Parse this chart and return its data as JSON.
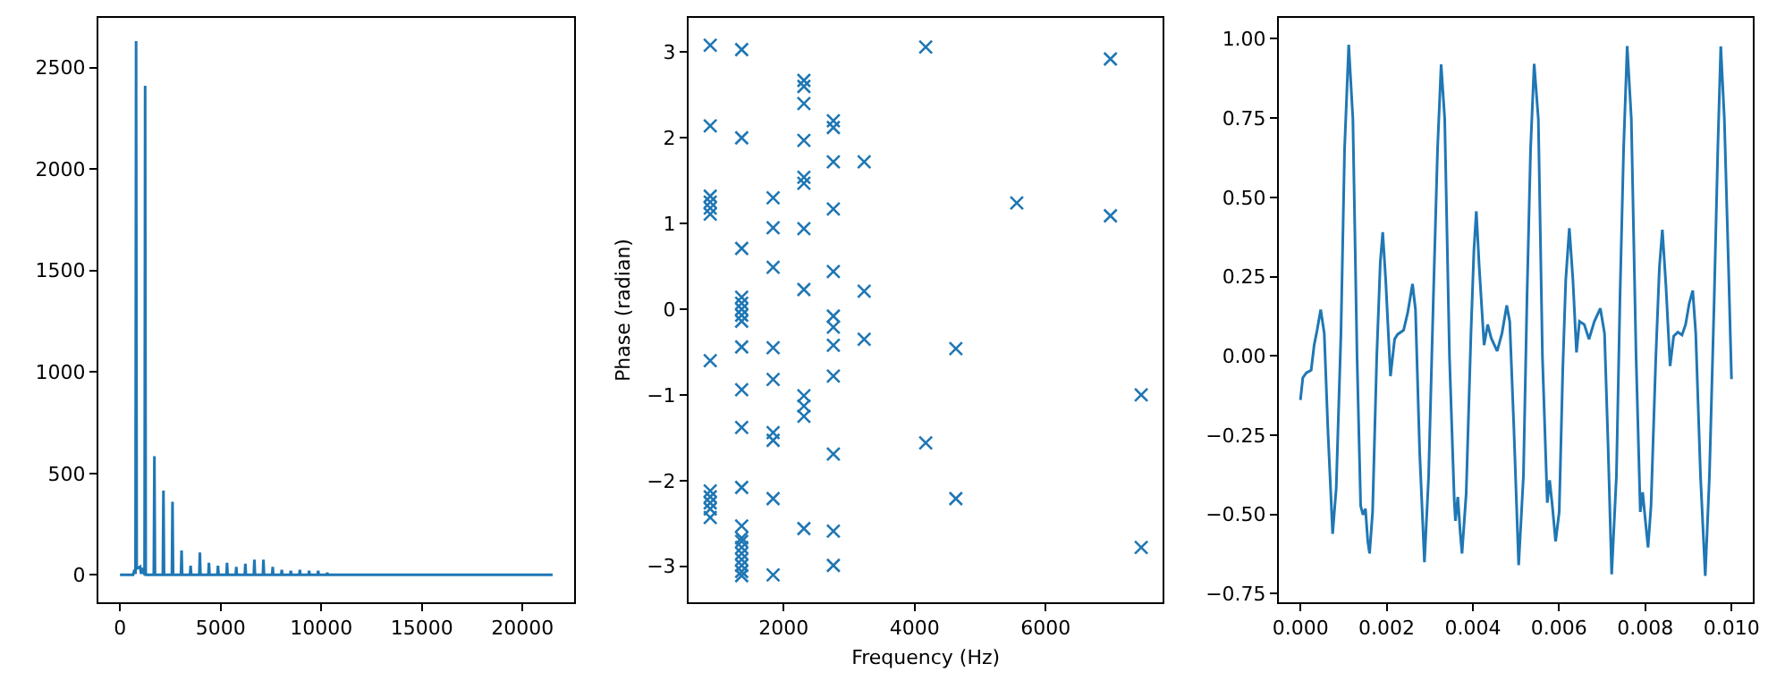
{
  "chart_data": [
    {
      "type": "line",
      "color": "#1f77b4",
      "x": [
        0,
        650,
        720,
        770,
        800,
        830,
        1000,
        1050,
        1100,
        1220,
        1250,
        1280,
        1680,
        1710,
        1740,
        2130,
        2160,
        2190,
        2580,
        2610,
        2640,
        3030,
        3060,
        3090,
        3480,
        3510,
        3540,
        3940,
        3970,
        4000,
        4390,
        4420,
        4450,
        4840,
        4870,
        4900,
        5290,
        5320,
        5350,
        5750,
        5780,
        5810,
        6200,
        6230,
        6260,
        6650,
        6680,
        6710,
        7100,
        7130,
        7160,
        7560,
        7590,
        7620,
        8010,
        8040,
        8070,
        8460,
        8490,
        8520,
        8910,
        8940,
        8970,
        9370,
        9400,
        9430,
        9820,
        9850,
        9880,
        10250,
        10300,
        10350,
        21500
      ],
      "values": [
        0,
        0,
        25,
        5,
        2630,
        30,
        40,
        5,
        35,
        0,
        2410,
        0,
        0,
        585,
        0,
        0,
        415,
        0,
        0,
        360,
        0,
        0,
        120,
        0,
        0,
        45,
        0,
        0,
        110,
        0,
        0,
        60,
        0,
        0,
        45,
        0,
        0,
        60,
        0,
        0,
        40,
        0,
        0,
        55,
        0,
        0,
        75,
        0,
        0,
        75,
        0,
        0,
        40,
        0,
        0,
        25,
        0,
        0,
        20,
        0,
        0,
        25,
        0,
        0,
        20,
        0,
        0,
        20,
        0,
        0,
        10,
        0,
        0
      ],
      "xlim": [
        -1075,
        22575
      ],
      "ylim": [
        -135,
        2745
      ],
      "xticks": [
        0,
        5000,
        10000,
        15000,
        20000
      ],
      "yticks": [
        0,
        500,
        1000,
        1500,
        2000,
        2500
      ],
      "grid": false,
      "legend": false,
      "marker": "none",
      "line_style": "solid"
    },
    {
      "type": "scatter",
      "color": "#1f77b4",
      "marker": "cross",
      "xlabel": "Frequency (Hz)",
      "ylabel": "Phase (radian)",
      "x": [
        880,
        880,
        880,
        880,
        880,
        880,
        880,
        880,
        880,
        880,
        880,
        880,
        1360,
        1360,
        1360,
        1360,
        1360,
        1360,
        1360,
        1360,
        1360,
        1360,
        1360,
        1360,
        1360,
        1360,
        1360,
        1360,
        1360,
        1360,
        1360,
        1360,
        1360,
        1840,
        1840,
        1840,
        1840,
        1840,
        1840,
        1840,
        1840,
        1840,
        2310,
        2310,
        2310,
        2310,
        2310,
        2310,
        2310,
        2310,
        2310,
        2310,
        2310,
        2310,
        2760,
        2760,
        2760,
        2760,
        2760,
        2760,
        2760,
        2760,
        2760,
        2760,
        2760,
        2760,
        3230,
        3230,
        3230,
        4170,
        4170,
        4630,
        4630,
        5560,
        6990,
        6990,
        7460,
        7460
      ],
      "values": [
        3.08,
        2.14,
        1.32,
        1.25,
        1.18,
        1.11,
        -0.6,
        -2.12,
        -2.19,
        -2.26,
        -2.33,
        -2.43,
        3.03,
        2.0,
        0.71,
        0.14,
        0.07,
        0,
        -0.07,
        -0.14,
        -0.44,
        -0.94,
        -1.38,
        -2.08,
        -2.53,
        -2.67,
        -2.71,
        -2.78,
        -2.85,
        -2.92,
        -2.99,
        -3.06,
        -3.11,
        1.3,
        0.95,
        0.49,
        -0.45,
        -0.82,
        -1.44,
        -1.53,
        -2.21,
        -3.1,
        2.67,
        2.6,
        2.4,
        1.97,
        1.54,
        1.47,
        0.94,
        0.23,
        -1.01,
        -1.13,
        -1.25,
        -2.56,
        2.2,
        2.12,
        1.72,
        1.17,
        0.44,
        -0.08,
        -0.21,
        -0.42,
        -0.78,
        -1.69,
        -2.59,
        -2.99,
        1.72,
        0.21,
        -0.35,
        3.06,
        -1.56,
        -0.46,
        -2.21,
        1.24,
        2.92,
        1.09,
        -1.0,
        -2.78
      ],
      "xlim": [
        550,
        7790
      ],
      "ylim": [
        -3.42,
        3.4
      ],
      "xticks": [
        2000,
        4000,
        6000
      ],
      "yticks": [
        {
          "value": -3,
          "label": "−3"
        },
        {
          "value": -2,
          "label": "−2"
        },
        {
          "value": -1,
          "label": "−1"
        },
        0,
        1,
        2,
        3
      ],
      "grid": false,
      "legend": false
    },
    {
      "type": "line",
      "color": "#1f77b4",
      "x": [
        0,
        5.5e-05,
        0.000138,
        0.000249,
        0.000318,
        0.000387,
        0.00047,
        0.000553,
        0.000636,
        0.000747,
        0.00083,
        0.00094,
        0.001024,
        0.00112,
        0.001217,
        0.001314,
        0.001397,
        0.001452,
        0.001508,
        0.001563,
        0.001604,
        0.001674,
        0.00177,
        0.001853,
        0.001909,
        0.001978,
        0.002089,
        0.002185,
        0.002254,
        0.002393,
        0.00249,
        0.0026,
        0.002669,
        0.002766,
        0.002877,
        0.002974,
        0.003084,
        0.003181,
        0.003264,
        0.003347,
        0.003458,
        0.003568,
        0.003596,
        0.003651,
        0.003707,
        0.003748,
        0.003845,
        0.003956,
        0.004025,
        0.00408,
        0.004149,
        0.00426,
        0.004343,
        0.004426,
        0.004564,
        0.004675,
        0.004786,
        0.004855,
        0.004952,
        0.005062,
        0.005173,
        0.005256,
        0.005339,
        0.005422,
        0.005519,
        0.005615,
        0.005726,
        0.005781,
        0.005837,
        0.00592,
        0.006003,
        0.006086,
        0.006155,
        0.006238,
        0.006321,
        0.006404,
        0.006473,
        0.006584,
        0.006694,
        0.006819,
        0.006957,
        0.007054,
        0.007137,
        0.00722,
        0.00733,
        0.007413,
        0.007497,
        0.00758,
        0.007676,
        0.007787,
        0.007884,
        0.007939,
        0.007995,
        0.008064,
        0.008133,
        0.008244,
        0.008327,
        0.008396,
        0.008479,
        0.008575,
        0.008658,
        0.008755,
        0.008852,
        0.008935,
        0.009018,
        0.009101,
        0.00917,
        0.009281,
        0.009391,
        0.009488,
        0.009599,
        0.009682,
        0.009751,
        0.009834,
        0.009931,
        0.01
      ],
      "values": [
        -0.139,
        -0.069,
        -0.053,
        -0.045,
        0.034,
        0.081,
        0.146,
        0.071,
        -0.229,
        -0.561,
        -0.417,
        0.071,
        0.653,
        0.981,
        0.747,
        -0.004,
        -0.473,
        -0.501,
        -0.482,
        -0.585,
        -0.623,
        -0.492,
        -0.004,
        0.296,
        0.39,
        0.24,
        -0.064,
        0.053,
        0.068,
        0.081,
        0.137,
        0.227,
        0.146,
        -0.304,
        -0.651,
        -0.379,
        0.184,
        0.653,
        0.919,
        0.747,
        -0.004,
        -0.454,
        -0.52,
        -0.445,
        -0.557,
        -0.623,
        -0.435,
        0.071,
        0.334,
        0.456,
        0.278,
        0.034,
        0.099,
        0.056,
        0.015,
        0.071,
        0.159,
        0.109,
        -0.229,
        -0.66,
        -0.379,
        0.184,
        0.653,
        0.921,
        0.747,
        -0.004,
        -0.463,
        -0.392,
        -0.463,
        -0.585,
        -0.492,
        -0.041,
        0.24,
        0.403,
        0.24,
        0.011,
        0.109,
        0.099,
        0.053,
        0.109,
        0.15,
        0.071,
        -0.285,
        -0.689,
        -0.379,
        0.184,
        0.653,
        0.977,
        0.747,
        -0.004,
        -0.492,
        -0.43,
        -0.51,
        -0.604,
        -0.473,
        -0.004,
        0.278,
        0.398,
        0.221,
        -0.032,
        0.062,
        0.075,
        0.066,
        0.099,
        0.165,
        0.206,
        0.071,
        -0.379,
        -0.694,
        -0.379,
        0.184,
        0.653,
        0.976,
        0.747,
        0.278,
        -0.073
      ],
      "xlim": [
        -0.0005,
        0.0105
      ],
      "ylim": [
        -0.777,
        1.066
      ],
      "xticks": [
        {
          "value": 0,
          "label": "0.000"
        },
        {
          "value": 0.002,
          "label": "0.002"
        },
        {
          "value": 0.004,
          "label": "0.004"
        },
        {
          "value": 0.006,
          "label": "0.006"
        },
        {
          "value": 0.008,
          "label": "0.008"
        },
        {
          "value": 0.01,
          "label": "0.010"
        }
      ],
      "yticks": [
        {
          "value": -0.75,
          "label": "−0.75"
        },
        {
          "value": -0.5,
          "label": "−0.50"
        },
        {
          "value": -0.25,
          "label": "−0.25"
        },
        {
          "value": 0,
          "label": "0.00"
        },
        {
          "value": 0.25,
          "label": "0.25"
        },
        {
          "value": 0.5,
          "label": "0.50"
        },
        {
          "value": 0.75,
          "label": "0.75"
        },
        {
          "value": 1,
          "label": "1.00"
        }
      ],
      "grid": false,
      "legend": false,
      "marker": "none",
      "line_style": "solid"
    }
  ]
}
